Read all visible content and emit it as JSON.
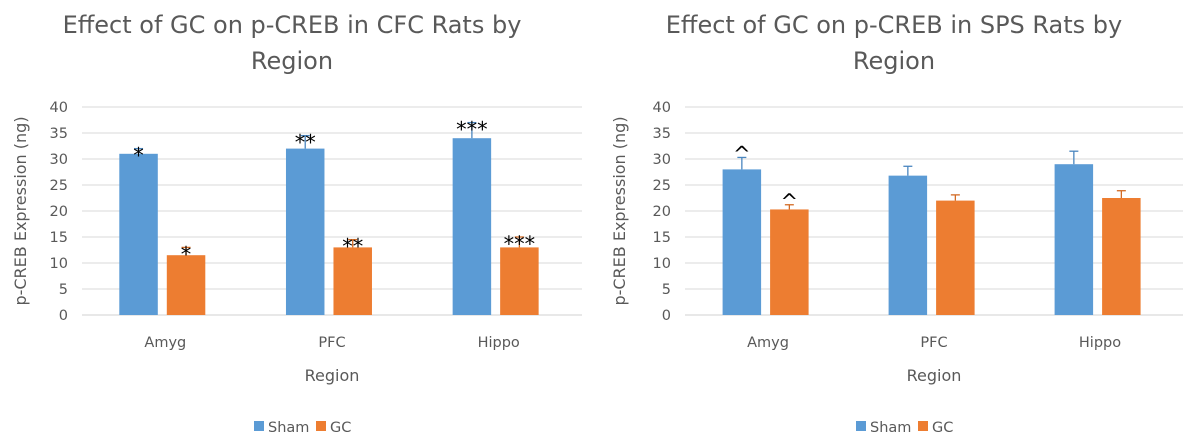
{
  "chart_data": [
    {
      "type": "bar",
      "title": "Effect of GC on p-CREB in CFC Rats by Region",
      "title_lines": [
        "Effect of GC on p-CREB in CFC Rats by",
        "Region"
      ],
      "xlabel": "Region",
      "ylabel": "p-CREB Expression (ng)",
      "ylim": [
        0,
        40
      ],
      "yticks": [
        "0",
        "5",
        "10",
        "15",
        "20",
        "25",
        "30",
        "35",
        "40"
      ],
      "grid": true,
      "legend": "bottom",
      "categories": [
        "Amyg",
        "PFC",
        "Hippo"
      ],
      "series": [
        {
          "name": "Sham",
          "color": "#5B9BD5",
          "values": [
            31,
            32,
            34
          ],
          "errors": [
            1,
            2.5,
            3
          ],
          "annotations": [
            "*",
            "**",
            "***"
          ]
        },
        {
          "name": "GC",
          "color": "#ED7D31",
          "values": [
            11.5,
            13,
            13
          ],
          "errors": [
            1.5,
            1.5,
            2
          ],
          "annotations": [
            "*",
            "**",
            "***"
          ]
        }
      ]
    },
    {
      "type": "bar",
      "title": "Effect of GC on p-CREB in SPS Rats by Region",
      "title_lines": [
        "Effect of GC on p-CREB in SPS Rats by",
        "Region"
      ],
      "xlabel": "Region",
      "ylabel": "p-CREB Expression (ng)",
      "ylim": [
        0,
        40
      ],
      "yticks": [
        "0",
        "5",
        "10",
        "15",
        "20",
        "25",
        "30",
        "35",
        "40"
      ],
      "grid": true,
      "legend": "bottom",
      "categories": [
        "Amyg",
        "PFC",
        "Hippo"
      ],
      "series": [
        {
          "name": "Sham",
          "color": "#5B9BD5",
          "values": [
            28,
            26.8,
            29
          ],
          "errors": [
            2.3,
            1.8,
            2.5
          ],
          "annotations": [
            "^",
            "",
            ""
          ]
        },
        {
          "name": "GC",
          "color": "#ED7D31",
          "values": [
            20.3,
            22,
            22.5
          ],
          "errors": [
            0.9,
            1.1,
            1.4
          ],
          "annotations": [
            "^",
            "",
            ""
          ]
        }
      ]
    }
  ]
}
